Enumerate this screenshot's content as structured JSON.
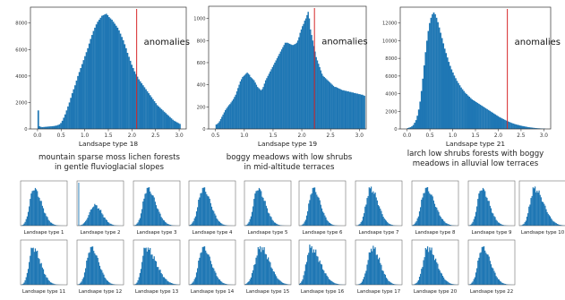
{
  "chart_data": {
    "type": "bar",
    "style": {
      "bar_color": "#1f77b4",
      "anomaly_line_color": "#d62728",
      "axis_color": "#333333",
      "background": "#ffffff"
    },
    "main_panels": [
      {
        "id": "t18",
        "xlabel": "Landsape type 18",
        "description_lines": [
          "mountain sparse moss lichen forests",
          "in gentle fluvioglacial slopes"
        ],
        "annotation": "anomalies",
        "threshold": 2.1,
        "xlim": [
          -0.15,
          3.15
        ],
        "ylim": [
          0,
          9200
        ],
        "xticks": [
          "0.0",
          "0.5",
          "1.0",
          "1.5",
          "2.0",
          "2.5",
          "3.0"
        ],
        "yticks": [
          "0",
          "2000",
          "4000",
          "6000",
          "8000"
        ],
        "bin_start": 0.0,
        "bin_width": 0.03,
        "values": [
          1400,
          200,
          150,
          140,
          150,
          160,
          170,
          180,
          190,
          200,
          210,
          220,
          240,
          260,
          300,
          350,
          450,
          620,
          850,
          1100,
          1400,
          1700,
          2000,
          2350,
          2700,
          3000,
          3300,
          3650,
          4000,
          4300,
          4600,
          4900,
          5200,
          5500,
          5800,
          6100,
          6450,
          6800,
          7100,
          7400,
          7650,
          7900,
          8100,
          8250,
          8400,
          8550,
          8600,
          8650,
          8700,
          8600,
          8450,
          8350,
          8250,
          8100,
          7950,
          7800,
          7650,
          7450,
          7200,
          6950,
          6700,
          6400,
          6100,
          5750,
          5450,
          5150,
          4850,
          4600,
          4350,
          4150,
          3950,
          3750,
          3600,
          3450,
          3300,
          3150,
          3000,
          2850,
          2700,
          2550,
          2400,
          2250,
          2100,
          1950,
          1800,
          1700,
          1600,
          1500,
          1400,
          1300,
          1200,
          1100,
          1000,
          900,
          800,
          700,
          620,
          560,
          500,
          440,
          380
        ]
      },
      {
        "id": "t19",
        "xlabel": "Landsape type 19",
        "description_lines": [
          "boggy meadows with low shrubs",
          "in mid-altitude terraces"
        ],
        "annotation": "anomalies",
        "threshold": 2.22,
        "xlim": [
          0.38,
          3.12
        ],
        "ylim": [
          0,
          1110
        ],
        "xticks": [
          "0.5",
          "1.0",
          "1.5",
          "2.0",
          "2.5",
          "3.0"
        ],
        "yticks": [
          "0",
          "200",
          "400",
          "600",
          "800",
          "1000"
        ],
        "bin_start": 0.5,
        "bin_width": 0.02,
        "values": [
          40,
          45,
          55,
          70,
          90,
          110,
          130,
          150,
          170,
          185,
          200,
          215,
          225,
          240,
          255,
          270,
          290,
          310,
          340,
          370,
          400,
          430,
          450,
          470,
          480,
          490,
          500,
          510,
          500,
          490,
          470,
          460,
          450,
          440,
          420,
          400,
          380,
          370,
          360,
          350,
          360,
          380,
          410,
          440,
          460,
          480,
          500,
          520,
          540,
          560,
          580,
          600,
          620,
          640,
          660,
          680,
          700,
          720,
          740,
          760,
          780,
          780,
          780,
          775,
          770,
          765,
          760,
          760,
          765,
          770,
          780,
          800,
          830,
          870,
          900,
          930,
          950,
          980,
          1000,
          1030,
          1060,
          1000,
          900,
          850,
          800,
          750,
          700,
          650,
          620,
          590,
          560,
          530,
          500,
          480,
          470,
          460,
          450,
          440,
          430,
          420,
          410,
          400,
          390,
          380,
          380,
          375,
          370,
          365,
          360,
          355,
          350,
          350,
          345,
          345,
          340,
          340,
          335,
          335,
          330,
          330,
          325,
          325,
          320,
          320,
          315,
          315,
          310,
          310,
          305,
          300
        ]
      },
      {
        "id": "t21",
        "xlabel": "Landsape type 21",
        "description_lines": [
          "larch low shrubs forests with boggy",
          "meadows in alluvial low terraces"
        ],
        "annotation": "anomalies",
        "threshold": 2.2,
        "xlim": [
          -0.15,
          3.15
        ],
        "ylim": [
          0,
          13800
        ],
        "xticks": [
          "0.0",
          "0.5",
          "1.0",
          "1.5",
          "2.0",
          "2.5",
          "3.0"
        ],
        "yticks": [
          "0",
          "2000",
          "4000",
          "6000",
          "8000",
          "10000",
          "12000"
        ],
        "bin_start": 0.0,
        "bin_width": 0.03,
        "values": [
          100,
          150,
          200,
          300,
          450,
          700,
          1000,
          1500,
          2200,
          3100,
          4300,
          5700,
          7200,
          8700,
          10000,
          11100,
          12000,
          12600,
          13000,
          13200,
          13000,
          12600,
          12100,
          11500,
          10900,
          10300,
          9700,
          9100,
          8600,
          8100,
          7600,
          7150,
          6750,
          6400,
          6050,
          5750,
          5450,
          5200,
          4950,
          4700,
          4500,
          4300,
          4100,
          3950,
          3800,
          3650,
          3500,
          3350,
          3250,
          3150,
          3050,
          2950,
          2850,
          2750,
          2650,
          2550,
          2450,
          2350,
          2250,
          2150,
          2050,
          1950,
          1850,
          1750,
          1650,
          1550,
          1450,
          1350,
          1270,
          1190,
          1110,
          1030,
          950,
          880,
          810,
          740,
          680,
          620,
          570,
          520,
          480,
          440,
          400,
          360,
          330,
          300,
          270,
          240,
          210,
          190,
          170,
          150,
          130,
          110,
          95,
          80,
          70,
          60,
          50,
          45,
          40
        ]
      }
    ],
    "small_panels": [
      {
        "id": "t1",
        "xlabel": "Landsape type 1",
        "peak": 0.28,
        "w1": 0.12,
        "w2": 0.3,
        "spike": false
      },
      {
        "id": "t2",
        "xlabel": "Landsape type 2",
        "peak": 0.38,
        "w1": 0.16,
        "w2": 0.28,
        "spike": true,
        "height": 0.55
      },
      {
        "id": "t3",
        "xlabel": "Landsape type 3",
        "peak": 0.3,
        "w1": 0.13,
        "w2": 0.32,
        "spike": false
      },
      {
        "id": "t4",
        "xlabel": "Landsape type 4",
        "peak": 0.3,
        "w1": 0.14,
        "w2": 0.3,
        "spike": false
      },
      {
        "id": "t5",
        "xlabel": "Landsape type 5",
        "peak": 0.28,
        "w1": 0.12,
        "w2": 0.3,
        "spike": false
      },
      {
        "id": "t6",
        "xlabel": "Landsape type 6",
        "peak": 0.3,
        "w1": 0.12,
        "w2": 0.28,
        "spike": false
      },
      {
        "id": "t7",
        "xlabel": "Landsape type 7",
        "peak": 0.32,
        "w1": 0.13,
        "w2": 0.3,
        "spike": false
      },
      {
        "id": "t8",
        "xlabel": "Landsape type 8",
        "peak": 0.3,
        "w1": 0.14,
        "w2": 0.34,
        "spike": false
      },
      {
        "id": "t9",
        "xlabel": "Landsape type 9",
        "peak": 0.28,
        "w1": 0.12,
        "w2": 0.3,
        "spike": false
      },
      {
        "id": "t10",
        "xlabel": "Landsape type 10",
        "peak": 0.32,
        "w1": 0.13,
        "w2": 0.36,
        "spike": false
      },
      {
        "id": "t11",
        "xlabel": "Landsape type 11",
        "peak": 0.26,
        "w1": 0.11,
        "w2": 0.3,
        "spike": false
      },
      {
        "id": "t12",
        "xlabel": "Landsape type 12",
        "peak": 0.3,
        "w1": 0.13,
        "w2": 0.3,
        "spike": false
      },
      {
        "id": "t13",
        "xlabel": "Landsape type 13",
        "peak": 0.26,
        "w1": 0.11,
        "w2": 0.4,
        "spike": false
      },
      {
        "id": "t14",
        "xlabel": "Landsape type 14",
        "peak": 0.3,
        "w1": 0.13,
        "w2": 0.32,
        "spike": false
      },
      {
        "id": "t15",
        "xlabel": "Landsape type 15",
        "peak": 0.34,
        "w1": 0.16,
        "w2": 0.36,
        "spike": false
      },
      {
        "id": "t16",
        "xlabel": "Landsape type 16",
        "peak": 0.24,
        "w1": 0.12,
        "w2": 0.38,
        "spike": false
      },
      {
        "id": "t17",
        "xlabel": "Landsape type 17",
        "peak": 0.36,
        "w1": 0.14,
        "w2": 0.3,
        "spike": false
      },
      {
        "id": "t20",
        "xlabel": "Landsape type 20",
        "peak": 0.34,
        "w1": 0.14,
        "w2": 0.34,
        "spike": false
      },
      {
        "id": "t22",
        "xlabel": "Landsape type 22",
        "peak": 0.3,
        "w1": 0.13,
        "w2": 0.32,
        "spike": false
      }
    ]
  }
}
